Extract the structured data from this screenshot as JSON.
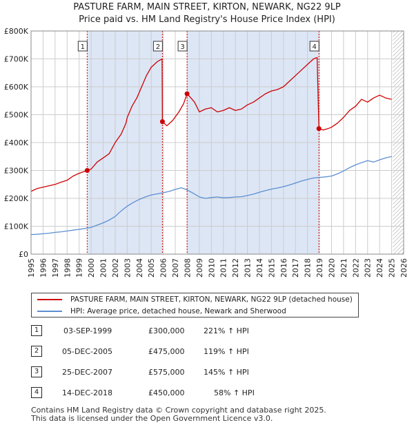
{
  "title_line1": "PASTURE FARM, MAIN STREET, KIRTON, NEWARK, NG22 9LP",
  "title_line2": "Price paid vs. HM Land Registry's House Price Index (HPI)",
  "colors": {
    "property": "#cc0000",
    "hpi": "#5b8ed1",
    "shade": "#dde6f5",
    "grid": "#cccccc"
  },
  "chart_data": {
    "type": "line",
    "xlim": [
      1995,
      2026
    ],
    "ylim": [
      0,
      800000
    ],
    "ytick_values": [
      0,
      100000,
      200000,
      300000,
      400000,
      500000,
      600000,
      700000,
      800000
    ],
    "ytick_labels": [
      "£0",
      "£100K",
      "£200K",
      "£300K",
      "£400K",
      "£500K",
      "£600K",
      "£700K",
      "£800K"
    ],
    "xtick_values": [
      1995,
      1996,
      1997,
      1998,
      1999,
      2000,
      2001,
      2002,
      2003,
      2004,
      2005,
      2006,
      2007,
      2008,
      2009,
      2010,
      2011,
      2012,
      2013,
      2014,
      2015,
      2016,
      2017,
      2018,
      2019,
      2020,
      2021,
      2022,
      2023,
      2024,
      2025,
      2026
    ],
    "xtick_labels": [
      "1995",
      "1996",
      "1997",
      "1998",
      "1999",
      "2000",
      "2001",
      "2002",
      "2003",
      "2004",
      "2005",
      "2006",
      "2007",
      "2008",
      "2009",
      "2010",
      "2011",
      "2012",
      "2013",
      "2014",
      "2015",
      "2016",
      "2017",
      "2018",
      "2019",
      "2020",
      "2021",
      "2022",
      "2023",
      "2024",
      "2025",
      "2026"
    ],
    "shaded_ranges": [
      [
        1999.67,
        2005.93
      ],
      [
        2007.98,
        2018.95
      ]
    ],
    "future_hatch_from": 2025.1,
    "series": [
      {
        "name": "PASTURE FARM, MAIN STREET, KIRTON, NEWARK, NG22 9LP (detached house)",
        "color": "#cc0000",
        "x": [
          1995.0,
          1995.5,
          1996.0,
          1996.5,
          1997.0,
          1997.5,
          1998.0,
          1998.5,
          1999.0,
          1999.67,
          2000.0,
          2000.5,
          2001.0,
          2001.5,
          2002.0,
          2002.5,
          2002.9,
          2003.0,
          2003.4,
          2003.8,
          2004.2,
          2004.6,
          2005.0,
          2005.5,
          2005.9,
          2005.93,
          2006.3,
          2006.8,
          2007.3,
          2007.7,
          2007.98,
          2008.3,
          2008.6,
          2009.0,
          2009.5,
          2010.0,
          2010.5,
          2011.0,
          2011.5,
          2012.0,
          2012.5,
          2013.0,
          2013.5,
          2014.0,
          2014.5,
          2015.0,
          2015.5,
          2016.0,
          2016.5,
          2017.0,
          2017.5,
          2018.0,
          2018.5,
          2018.8,
          2018.95,
          2019.3,
          2019.7,
          2020.0,
          2020.5,
          2021.0,
          2021.5,
          2022.0,
          2022.5,
          2023.0,
          2023.5,
          2024.0,
          2024.5,
          2025.0
        ],
        "y": [
          225000,
          235000,
          240000,
          245000,
          250000,
          258000,
          265000,
          280000,
          290000,
          300000,
          305000,
          330000,
          345000,
          360000,
          400000,
          430000,
          470000,
          490000,
          530000,
          560000,
          600000,
          640000,
          670000,
          690000,
          700000,
          475000,
          460000,
          480000,
          510000,
          540000,
          575000,
          560000,
          545000,
          510000,
          520000,
          525000,
          510000,
          515000,
          525000,
          515000,
          520000,
          535000,
          545000,
          560000,
          575000,
          585000,
          590000,
          600000,
          620000,
          640000,
          660000,
          680000,
          700000,
          705000,
          450000,
          445000,
          450000,
          455000,
          470000,
          490000,
          515000,
          530000,
          555000,
          545000,
          560000,
          570000,
          560000,
          555000
        ]
      },
      {
        "name": "HPI: Average price, detached house, Newark and Sherwood",
        "color": "#5b8ed1",
        "x": [
          1995.0,
          1995.5,
          1996.0,
          1996.5,
          1997.0,
          1997.5,
          1998.0,
          1998.5,
          1999.0,
          1999.5,
          2000.0,
          2000.5,
          2001.0,
          2001.5,
          2002.0,
          2002.5,
          2003.0,
          2003.5,
          2004.0,
          2004.5,
          2005.0,
          2005.5,
          2006.0,
          2006.5,
          2007.0,
          2007.5,
          2008.0,
          2008.5,
          2009.0,
          2009.5,
          2010.0,
          2010.5,
          2011.0,
          2011.5,
          2012.0,
          2012.5,
          2013.0,
          2013.5,
          2014.0,
          2014.5,
          2015.0,
          2015.5,
          2016.0,
          2016.5,
          2017.0,
          2017.5,
          2018.0,
          2018.5,
          2019.0,
          2019.5,
          2020.0,
          2020.5,
          2021.0,
          2021.5,
          2022.0,
          2022.5,
          2023.0,
          2023.5,
          2024.0,
          2024.5,
          2025.0
        ],
        "y": [
          70000,
          71000,
          73000,
          75000,
          78000,
          80000,
          83000,
          86000,
          89000,
          92000,
          96000,
          104000,
          112000,
          122000,
          135000,
          155000,
          172000,
          185000,
          196000,
          205000,
          212000,
          216000,
          220000,
          225000,
          232000,
          238000,
          230000,
          218000,
          205000,
          200000,
          203000,
          205000,
          202000,
          203000,
          205000,
          206000,
          210000,
          215000,
          222000,
          228000,
          233000,
          237000,
          242000,
          248000,
          255000,
          262000,
          268000,
          273000,
          275000,
          277000,
          280000,
          288000,
          298000,
          310000,
          320000,
          328000,
          335000,
          330000,
          338000,
          345000,
          350000
        ]
      }
    ],
    "sales": [
      {
        "label": "1",
        "x": 1999.67,
        "y": 300000
      },
      {
        "label": "2",
        "x": 2005.93,
        "y": 475000
      },
      {
        "label": "3",
        "x": 2007.98,
        "y": 575000
      },
      {
        "label": "4",
        "x": 2018.95,
        "y": 450000
      }
    ]
  },
  "legend": {
    "property_label": "PASTURE FARM, MAIN STREET, KIRTON, NEWARK, NG22 9LP (detached house)",
    "hpi_label": "HPI: Average price, detached house, Newark and Sherwood"
  },
  "sale_rows": [
    {
      "num": "1",
      "date": "03-SEP-1999",
      "price": "£300,000",
      "hpi": "221% ↑ HPI"
    },
    {
      "num": "2",
      "date": "05-DEC-2005",
      "price": "£475,000",
      "hpi": "119% ↑ HPI"
    },
    {
      "num": "3",
      "date": "25-DEC-2007",
      "price": "£575,000",
      "hpi": "145% ↑ HPI"
    },
    {
      "num": "4",
      "date": "14-DEC-2018",
      "price": "£450,000",
      "hpi": "58% ↑ HPI"
    }
  ],
  "footer_line1": "Contains HM Land Registry data © Crown copyright and database right 2025.",
  "footer_line2": "This data is licensed under the Open Government Licence v3.0."
}
